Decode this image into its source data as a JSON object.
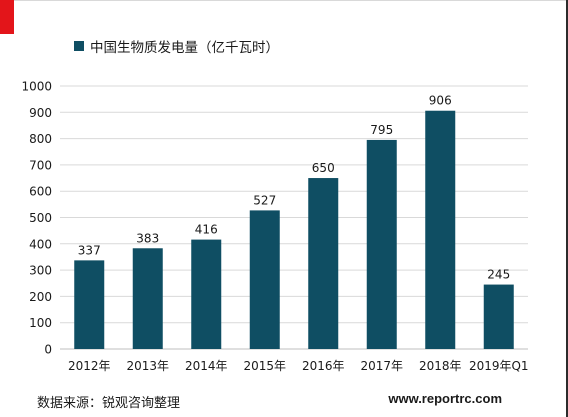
{
  "chart_data": {
    "type": "bar",
    "categories": [
      "2012年",
      "2013年",
      "2014年",
      "2015年",
      "2016年",
      "2017年",
      "2018年",
      "2019年Q1"
    ],
    "series": [
      {
        "name": "中国生物质发电量（亿千瓦时）",
        "values": [
          337,
          383,
          416,
          527,
          650,
          795,
          906,
          245
        ],
        "color": "#0f4e63"
      }
    ],
    "ylim": [
      0,
      1000
    ],
    "yticks": [
      "0",
      "100",
      "200",
      "300",
      "400",
      "500",
      "600",
      "700",
      "800",
      "900",
      "1000"
    ],
    "data_labels": [
      "337",
      "383",
      "416",
      "527",
      "650",
      "795",
      "906",
      "245"
    ],
    "grid": true,
    "legend_position": "top-left",
    "title": "",
    "xlabel": "",
    "ylabel": ""
  },
  "footer": {
    "source": "数据来源：锐观咨询整理",
    "website": "www.reportrc.com"
  },
  "colors": {
    "bar": "#0f4e63",
    "accent": "#e3151a",
    "grid": "#d9d9d9"
  }
}
